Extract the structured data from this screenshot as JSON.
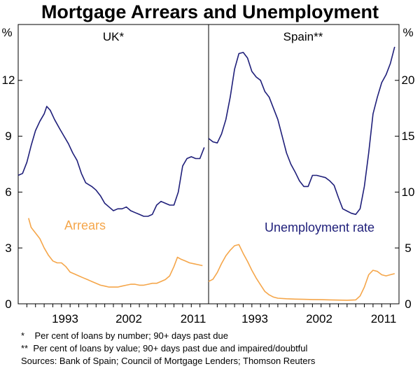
{
  "title": "Mortgage Arrears and Unemployment",
  "colors": {
    "unemployment": "#1f1f7a",
    "arrears": "#f5a64a",
    "frame": "#000000"
  },
  "axes": {
    "left_unit": "%",
    "right_unit": "%",
    "left_ticks": [
      "0",
      "3",
      "6",
      "9",
      "12"
    ],
    "right_ticks": [
      "0",
      "5",
      "10",
      "15",
      "20"
    ]
  },
  "series_labels": {
    "arrears": "Arrears",
    "unemployment": "Unemployment rate"
  },
  "footnotes": {
    "uk": "*    Per cent of loans by number; 90+ days past due",
    "spain": "**  Per cent of loans by value; 90+ days past due and impaired/doubtful",
    "sources": "Sources: Bank of Spain; Council of Mortgage Lenders; Thomson Reuters"
  },
  "chart_data": [
    {
      "type": "line",
      "panel_title": "UK*",
      "x_ticks": [
        "1993",
        "2002",
        "2011"
      ],
      "xlim": [
        1990.0,
        2012.0
      ],
      "ylim": [
        0,
        15
      ],
      "y_axis": "left",
      "series": [
        {
          "name": "Unemployment rate",
          "color_key": "unemployment",
          "points": [
            [
              1990.0,
              6.9
            ],
            [
              1990.5,
              7.0
            ],
            [
              1991.0,
              7.6
            ],
            [
              1991.5,
              8.5
            ],
            [
              1992.0,
              9.3
            ],
            [
              1992.5,
              9.8
            ],
            [
              1993.0,
              10.2
            ],
            [
              1993.3,
              10.6
            ],
            [
              1993.7,
              10.4
            ],
            [
              1994.2,
              9.9
            ],
            [
              1994.8,
              9.4
            ],
            [
              1995.3,
              9.0
            ],
            [
              1995.8,
              8.6
            ],
            [
              1996.3,
              8.1
            ],
            [
              1996.8,
              7.7
            ],
            [
              1997.3,
              7.0
            ],
            [
              1997.8,
              6.5
            ],
            [
              1998.5,
              6.3
            ],
            [
              1999.0,
              6.1
            ],
            [
              1999.5,
              5.8
            ],
            [
              2000.0,
              5.4
            ],
            [
              2000.5,
              5.2
            ],
            [
              2001.0,
              5.0
            ],
            [
              2001.5,
              5.1
            ],
            [
              2002.0,
              5.1
            ],
            [
              2002.5,
              5.2
            ],
            [
              2003.0,
              5.0
            ],
            [
              2003.5,
              4.9
            ],
            [
              2004.0,
              4.8
            ],
            [
              2004.5,
              4.7
            ],
            [
              2005.0,
              4.7
            ],
            [
              2005.5,
              4.8
            ],
            [
              2006.0,
              5.3
            ],
            [
              2006.5,
              5.5
            ],
            [
              2007.0,
              5.4
            ],
            [
              2007.5,
              5.3
            ],
            [
              2008.0,
              5.3
            ],
            [
              2008.5,
              6.0
            ],
            [
              2009.0,
              7.4
            ],
            [
              2009.5,
              7.8
            ],
            [
              2010.0,
              7.9
            ],
            [
              2010.5,
              7.8
            ],
            [
              2011.0,
              7.8
            ],
            [
              2011.5,
              8.4
            ]
          ]
        },
        {
          "name": "Arrears",
          "color_key": "arrears",
          "points": [
            [
              1991.2,
              4.6
            ],
            [
              1991.5,
              4.1
            ],
            [
              1992.0,
              3.8
            ],
            [
              1992.5,
              3.5
            ],
            [
              1993.0,
              3.0
            ],
            [
              1993.5,
              2.6
            ],
            [
              1994.0,
              2.3
            ],
            [
              1994.5,
              2.2
            ],
            [
              1995.0,
              2.2
            ],
            [
              1995.5,
              2.0
            ],
            [
              1996.0,
              1.7
            ],
            [
              1996.5,
              1.6
            ],
            [
              1997.0,
              1.5
            ],
            [
              1997.5,
              1.4
            ],
            [
              1998.0,
              1.3
            ],
            [
              1998.5,
              1.2
            ],
            [
              1999.0,
              1.1
            ],
            [
              1999.5,
              1.0
            ],
            [
              2000.0,
              0.95
            ],
            [
              2000.5,
              0.9
            ],
            [
              2001.0,
              0.9
            ],
            [
              2001.5,
              0.9
            ],
            [
              2002.0,
              0.95
            ],
            [
              2002.5,
              1.0
            ],
            [
              2003.0,
              1.05
            ],
            [
              2003.5,
              1.05
            ],
            [
              2004.0,
              1.0
            ],
            [
              2004.5,
              1.0
            ],
            [
              2005.0,
              1.05
            ],
            [
              2005.5,
              1.1
            ],
            [
              2006.0,
              1.1
            ],
            [
              2006.5,
              1.2
            ],
            [
              2007.0,
              1.3
            ],
            [
              2007.5,
              1.5
            ],
            [
              2008.0,
              2.0
            ],
            [
              2008.4,
              2.5
            ],
            [
              2008.8,
              2.4
            ],
            [
              2009.3,
              2.3
            ],
            [
              2009.8,
              2.2
            ],
            [
              2010.3,
              2.15
            ],
            [
              2010.8,
              2.1
            ],
            [
              2011.3,
              2.05
            ]
          ]
        }
      ]
    },
    {
      "type": "line",
      "panel_title": "Spain**",
      "x_ticks": [
        "1993",
        "2002",
        "2011"
      ],
      "xlim": [
        1990.0,
        2012.0
      ],
      "ylim": [
        0,
        25
      ],
      "y_axis": "right",
      "series": [
        {
          "name": "Unemployment rate",
          "color_key": "unemployment",
          "points": [
            [
              1990.0,
              14.8
            ],
            [
              1990.5,
              14.5
            ],
            [
              1991.0,
              14.4
            ],
            [
              1991.5,
              15.2
            ],
            [
              1992.0,
              16.5
            ],
            [
              1992.5,
              18.5
            ],
            [
              1993.0,
              21.0
            ],
            [
              1993.5,
              22.4
            ],
            [
              1994.0,
              22.5
            ],
            [
              1994.5,
              22.0
            ],
            [
              1995.0,
              20.8
            ],
            [
              1995.5,
              20.3
            ],
            [
              1996.0,
              20.0
            ],
            [
              1996.5,
              19.0
            ],
            [
              1997.0,
              18.5
            ],
            [
              1997.5,
              17.5
            ],
            [
              1998.0,
              16.5
            ],
            [
              1998.5,
              15.0
            ],
            [
              1999.0,
              13.5
            ],
            [
              1999.5,
              12.5
            ],
            [
              2000.0,
              11.8
            ],
            [
              2000.5,
              11.0
            ],
            [
              2001.0,
              10.5
            ],
            [
              2001.5,
              10.5
            ],
            [
              2002.0,
              11.5
            ],
            [
              2002.5,
              11.5
            ],
            [
              2003.0,
              11.4
            ],
            [
              2003.5,
              11.3
            ],
            [
              2004.0,
              11.0
            ],
            [
              2004.5,
              10.6
            ],
            [
              2005.0,
              9.5
            ],
            [
              2005.5,
              8.5
            ],
            [
              2006.0,
              8.3
            ],
            [
              2006.5,
              8.1
            ],
            [
              2007.0,
              8.0
            ],
            [
              2007.5,
              8.5
            ],
            [
              2008.0,
              10.5
            ],
            [
              2008.5,
              13.5
            ],
            [
              2009.0,
              17.0
            ],
            [
              2009.5,
              18.5
            ],
            [
              2010.0,
              19.8
            ],
            [
              2010.5,
              20.5
            ],
            [
              2011.0,
              21.5
            ],
            [
              2011.5,
              23.0
            ]
          ]
        },
        {
          "name": "Arrears",
          "color_key": "arrears",
          "points": [
            [
              1990.0,
              2.0
            ],
            [
              1990.5,
              2.2
            ],
            [
              1991.0,
              2.8
            ],
            [
              1991.5,
              3.6
            ],
            [
              1992.0,
              4.3
            ],
            [
              1992.5,
              4.8
            ],
            [
              1993.0,
              5.2
            ],
            [
              1993.5,
              5.3
            ],
            [
              1994.0,
              4.5
            ],
            [
              1994.5,
              3.8
            ],
            [
              1995.0,
              3.0
            ],
            [
              1995.5,
              2.3
            ],
            [
              1996.0,
              1.7
            ],
            [
              1996.5,
              1.1
            ],
            [
              1997.0,
              0.8
            ],
            [
              1997.5,
              0.6
            ],
            [
              1998.0,
              0.5
            ],
            [
              1999.0,
              0.45
            ],
            [
              2000.0,
              0.42
            ],
            [
              2001.0,
              0.4
            ],
            [
              2002.0,
              0.38
            ],
            [
              2003.0,
              0.37
            ],
            [
              2004.0,
              0.35
            ],
            [
              2005.0,
              0.33
            ],
            [
              2006.0,
              0.32
            ],
            [
              2007.0,
              0.35
            ],
            [
              2007.5,
              0.7
            ],
            [
              2008.0,
              1.5
            ],
            [
              2008.5,
              2.6
            ],
            [
              2009.0,
              3.0
            ],
            [
              2009.5,
              2.9
            ],
            [
              2010.0,
              2.6
            ],
            [
              2010.5,
              2.5
            ],
            [
              2011.0,
              2.6
            ],
            [
              2011.5,
              2.7
            ]
          ]
        }
      ]
    }
  ]
}
